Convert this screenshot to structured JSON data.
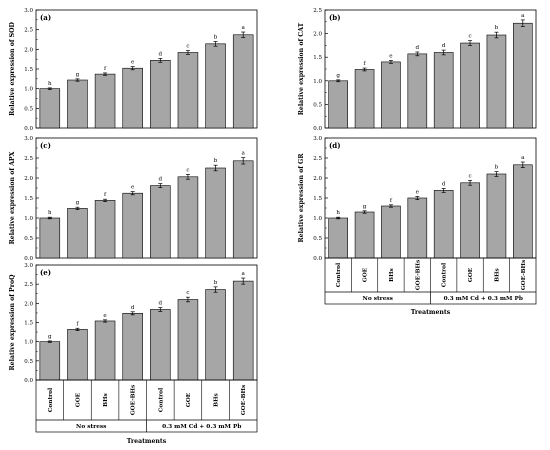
{
  "figure": {
    "categories": [
      "Control",
      "GOE",
      "BHs",
      "GOE-BHs",
      "Control",
      "GOE",
      "BHs",
      "GOE-BHs"
    ],
    "groups": [
      "No stress",
      "0.3 mM Cd + 0.3 mM Pb"
    ],
    "xlabel": "Treatments"
  },
  "chart_data": [
    {
      "type": "bar",
      "panel_label": "(a)",
      "ylabel": "Relative expression of SOD",
      "ylim": [
        0,
        3.0
      ],
      "yticks": [
        "0.0",
        "0.5",
        "1.0",
        "1.5",
        "2.0",
        "2.5",
        "3.0"
      ],
      "values": [
        1.0,
        1.22,
        1.37,
        1.52,
        1.72,
        1.92,
        2.14,
        2.37
      ],
      "errors": [
        0.02,
        0.03,
        0.03,
        0.04,
        0.05,
        0.05,
        0.06,
        0.07
      ],
      "letters": [
        "h",
        "g",
        "f",
        "e",
        "d",
        "c",
        "b",
        "a"
      ]
    },
    {
      "type": "bar",
      "panel_label": "(b)",
      "ylabel": "Relative expression of CAT",
      "ylim": [
        0,
        2.5
      ],
      "yticks": [
        "0.0",
        "0.5",
        "1.0",
        "1.5",
        "2.0",
        "2.5"
      ],
      "values": [
        1.0,
        1.24,
        1.4,
        1.57,
        1.6,
        1.8,
        1.97,
        2.22
      ],
      "errors": [
        0.02,
        0.03,
        0.03,
        0.04,
        0.05,
        0.05,
        0.06,
        0.07
      ],
      "letters": [
        "g",
        "f",
        "e",
        "d",
        "d",
        "c",
        "b",
        "a"
      ]
    },
    {
      "type": "bar",
      "panel_label": "(c)",
      "ylabel": "Relative expression of APX",
      "ylim": [
        0,
        3.0
      ],
      "yticks": [
        "0.0",
        "0.5",
        "1.0",
        "1.5",
        "2.0",
        "2.5",
        "3.0"
      ],
      "values": [
        1.0,
        1.24,
        1.44,
        1.62,
        1.81,
        2.03,
        2.25,
        2.43
      ],
      "errors": [
        0.02,
        0.03,
        0.03,
        0.04,
        0.05,
        0.06,
        0.07,
        0.08
      ],
      "letters": [
        "h",
        "g",
        "f",
        "e",
        "d",
        "c",
        "b",
        "a"
      ]
    },
    {
      "type": "bar",
      "panel_label": "(d)",
      "ylabel": "Relative expression of GR",
      "ylim": [
        0,
        3.0
      ],
      "yticks": [
        "0.0",
        "0.5",
        "1.0",
        "1.5",
        "2.0",
        "2.5",
        "3.0"
      ],
      "values": [
        1.0,
        1.15,
        1.3,
        1.5,
        1.69,
        1.88,
        2.1,
        2.33
      ],
      "errors": [
        0.02,
        0.03,
        0.03,
        0.04,
        0.05,
        0.06,
        0.06,
        0.07
      ],
      "letters": [
        "h",
        "g",
        "f",
        "e",
        "d",
        "c",
        "b",
        "a"
      ]
    },
    {
      "type": "bar",
      "panel_label": "(e)",
      "ylabel": "Relative expression of ProQ",
      "ylim": [
        0,
        3.0
      ],
      "yticks": [
        "0.0",
        "0.5",
        "1.0",
        "1.5",
        "2.0",
        "2.5",
        "3.0"
      ],
      "values": [
        1.0,
        1.32,
        1.54,
        1.74,
        1.84,
        2.1,
        2.36,
        2.58
      ],
      "errors": [
        0.02,
        0.03,
        0.03,
        0.04,
        0.05,
        0.06,
        0.07,
        0.08
      ],
      "letters": [
        "g",
        "f",
        "e",
        "d",
        "d",
        "c",
        "b",
        "a"
      ]
    }
  ],
  "colors": {
    "bar_fill": "#a6a6a6",
    "bar_stroke": "#000000",
    "axis": "#000000"
  }
}
